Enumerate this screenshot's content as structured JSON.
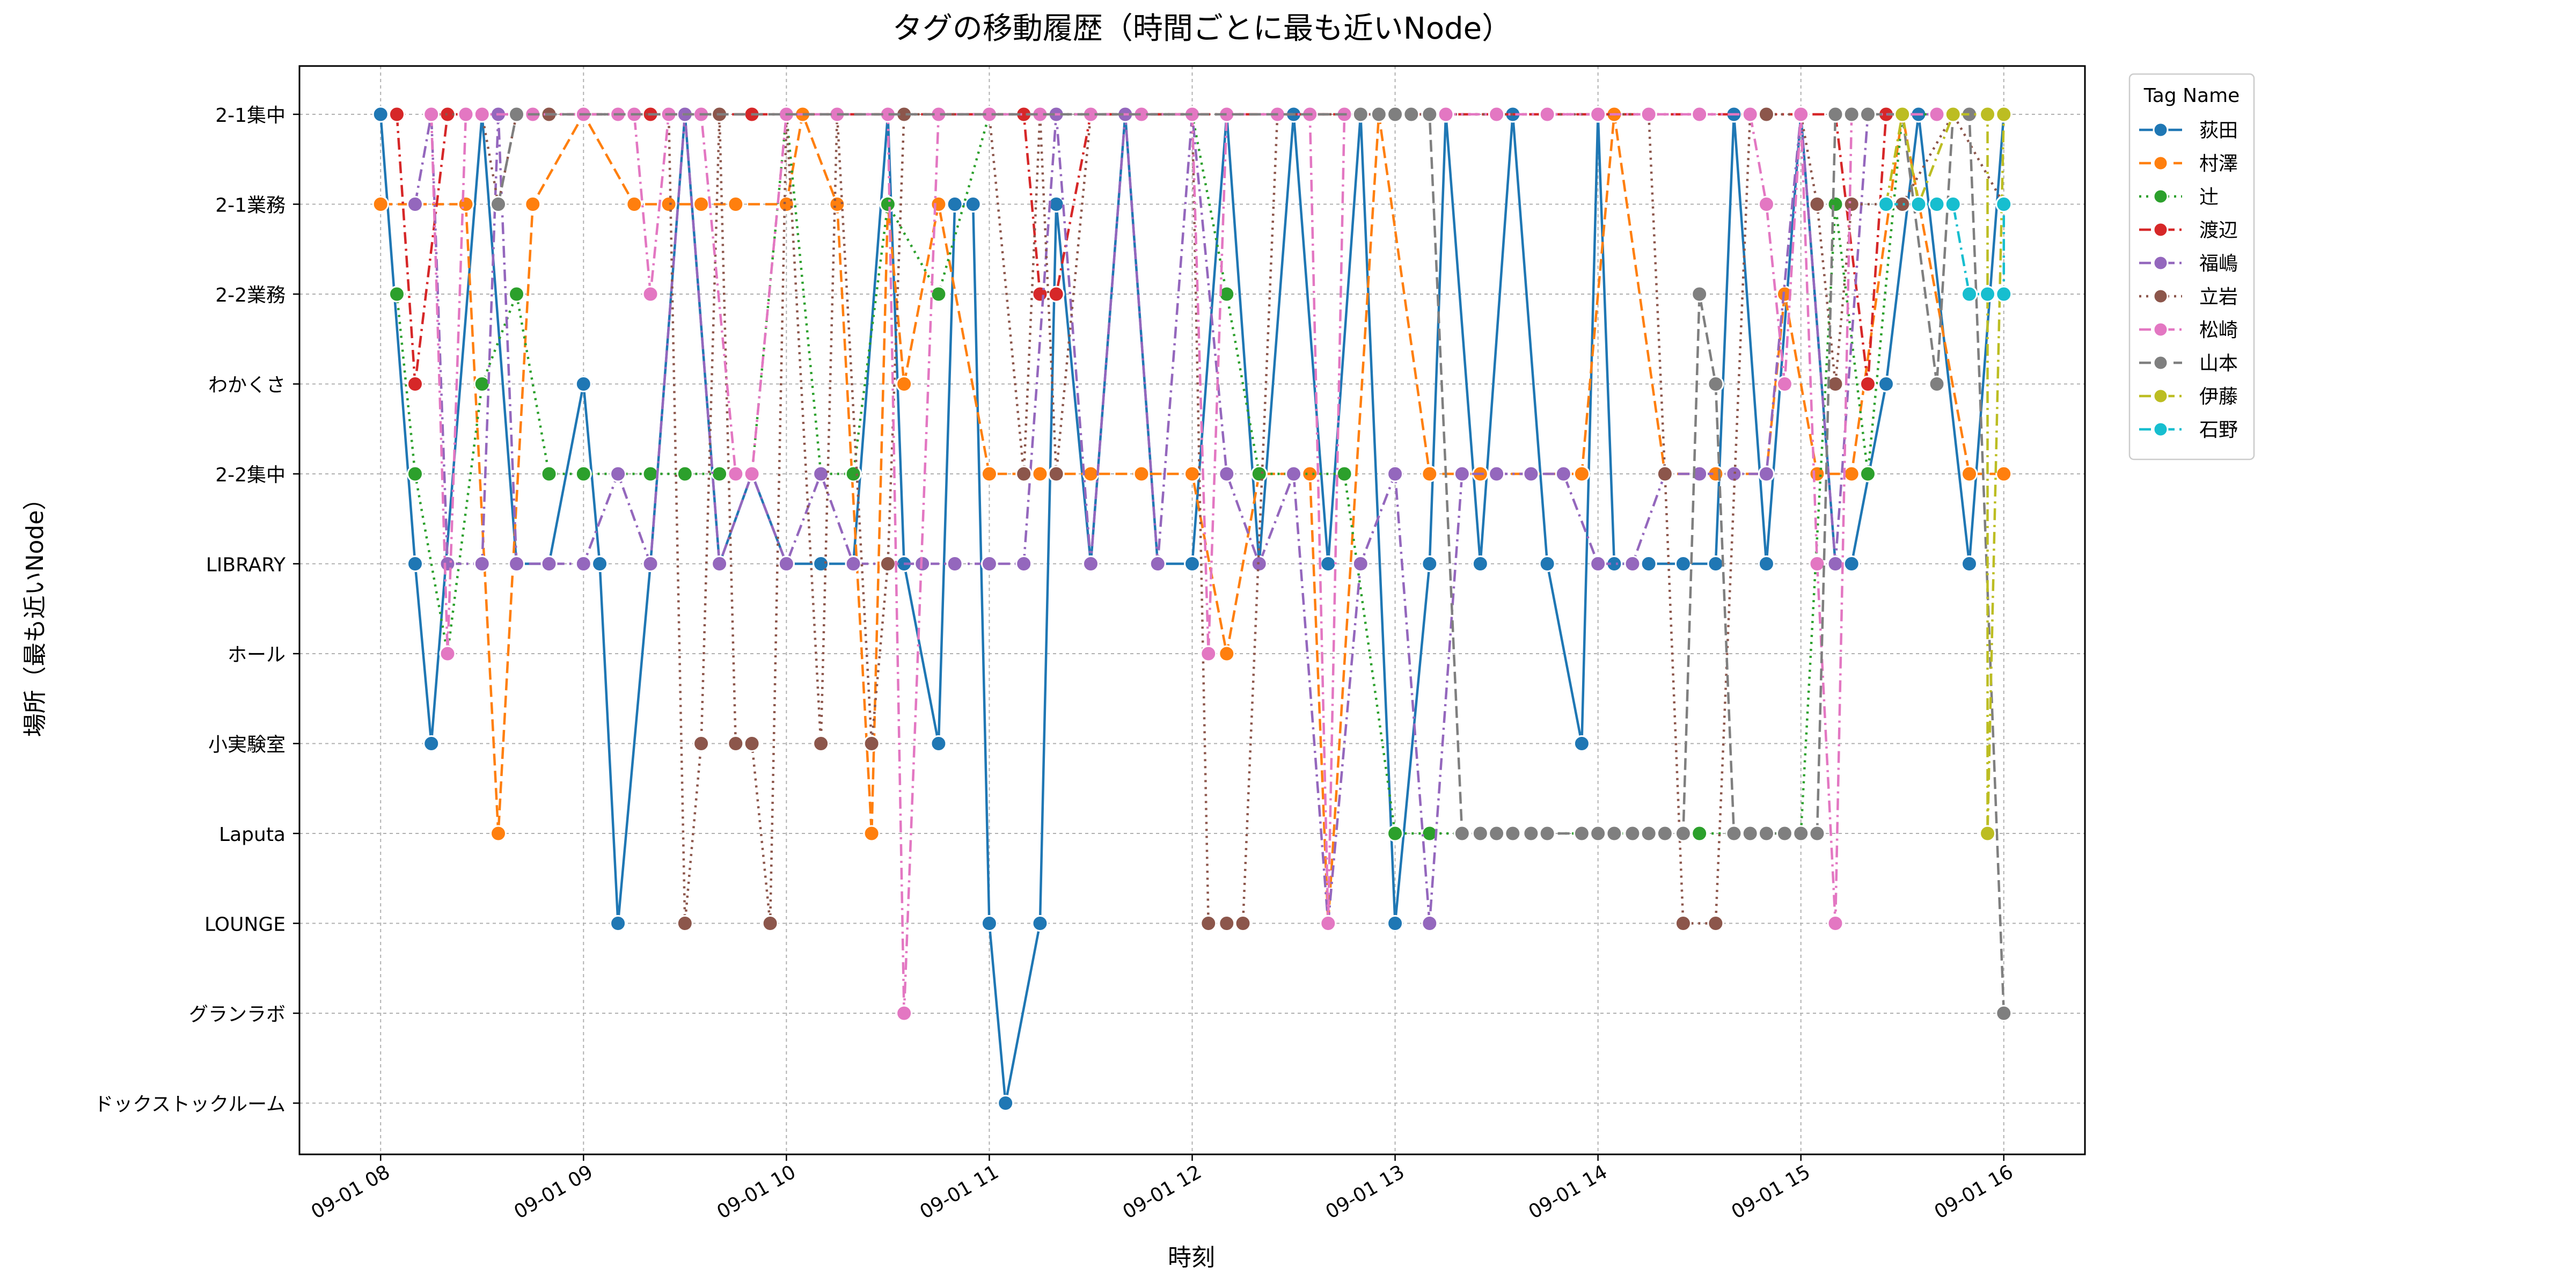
{
  "chart_data": {
    "type": "line",
    "title": "タグの移動履歴（時間ごとに最も近いNode）",
    "xlabel": "時刻",
    "ylabel": "場所（最も近いNode）",
    "x_tick_labels": [
      "09-01 08",
      "09-01 09",
      "09-01 10",
      "09-01 11",
      "09-01 12",
      "09-01 13",
      "09-01 14",
      "09-01 15",
      "09-01 16"
    ],
    "x_tick_hours": [
      8,
      9,
      10,
      11,
      12,
      13,
      14,
      15,
      16
    ],
    "xlim_hours": [
      7.6,
      16.4
    ],
    "y_categories": [
      "2-1集中",
      "2-1業務",
      "2-2業務",
      "わかくさ",
      "2-2集中",
      "LIBRARY",
      "ホール",
      "小実験室",
      "Laputa",
      "LOUNGE",
      "グランラボ",
      "ドックストックルーム"
    ],
    "grid": true,
    "legend": {
      "title": "Tag Name",
      "placement": "outside-top-right"
    },
    "series": [
      {
        "name": "荻田",
        "color": "#1f77b4",
        "dash": "solid",
        "x": [
          8.0,
          8.17,
          8.25,
          8.5,
          8.67,
          8.83,
          9.0,
          9.08,
          9.17,
          9.33,
          9.5,
          9.67,
          9.83,
          10.0,
          10.17,
          10.33,
          10.5,
          10.58,
          10.75,
          10.83,
          10.92,
          11.0,
          11.08,
          11.25,
          11.33,
          11.5,
          11.67,
          11.83,
          12.0,
          12.17,
          12.33,
          12.5,
          12.67,
          12.83,
          13.0,
          13.17,
          13.25,
          13.42,
          13.58,
          13.75,
          13.92,
          14.0,
          14.08,
          14.25,
          14.42,
          14.58,
          14.67,
          14.83,
          15.0,
          15.17,
          15.25,
          15.42,
          15.58,
          15.83,
          16.0
        ],
        "y": [
          "2-1集中",
          "LIBRARY",
          "小実験室",
          "2-1集中",
          "LIBRARY",
          "LIBRARY",
          "わかくさ",
          "LIBRARY",
          "LOUNGE",
          "LIBRARY",
          "2-1集中",
          "LIBRARY",
          "2-2集中",
          "LIBRARY",
          "LIBRARY",
          "LIBRARY",
          "2-1集中",
          "LIBRARY",
          "小実験室",
          "2-1業務",
          "2-1業務",
          "LOUNGE",
          "ドックストックルーム",
          "LOUNGE",
          "2-1業務",
          "LIBRARY",
          "2-1集中",
          "LIBRARY",
          "LIBRARY",
          "2-1集中",
          "LIBRARY",
          "2-1集中",
          "LIBRARY",
          "2-1集中",
          "LOUNGE",
          "LIBRARY",
          "2-1集中",
          "LIBRARY",
          "2-1集中",
          "LIBRARY",
          "小実験室",
          "2-1集中",
          "LIBRARY",
          "LIBRARY",
          "LIBRARY",
          "LIBRARY",
          "2-1集中",
          "LIBRARY",
          "2-1集中",
          "LIBRARY",
          "LIBRARY",
          "わかくさ",
          "2-1集中",
          "LIBRARY",
          "2-1集中"
        ]
      },
      {
        "name": "村澤",
        "color": "#ff7f0e",
        "dash": "dashed",
        "x": [
          8.0,
          8.17,
          8.42,
          8.58,
          8.75,
          9.0,
          9.25,
          9.42,
          9.58,
          9.75,
          10.0,
          10.08,
          10.25,
          10.42,
          10.5,
          10.58,
          10.75,
          11.0,
          11.25,
          11.5,
          11.75,
          12.0,
          12.17,
          12.33,
          12.58,
          12.67,
          12.92,
          13.17,
          13.42,
          13.67,
          13.92,
          14.08,
          14.33,
          14.58,
          14.83,
          14.92,
          15.08,
          15.25,
          15.5,
          15.83,
          16.0
        ],
        "y": [
          "2-1業務",
          "2-1業務",
          "2-1業務",
          "Laputa",
          "2-1業務",
          "2-1集中",
          "2-1業務",
          "2-1業務",
          "2-1業務",
          "2-1業務",
          "2-1業務",
          "2-1集中",
          "2-1業務",
          "Laputa",
          "2-1業務",
          "わかくさ",
          "2-1業務",
          "2-2集中",
          "2-2集中",
          "2-2集中",
          "2-2集中",
          "2-2集中",
          "ホール",
          "2-2集中",
          "2-2集中",
          "LOUNGE",
          "2-1集中",
          "2-2集中",
          "2-2集中",
          "2-2集中",
          "2-2集中",
          "2-1集中",
          "2-2集中",
          "2-2集中",
          "2-2集中",
          "2-2業務",
          "2-2集中",
          "2-2集中",
          "2-1集中",
          "2-2集中",
          "2-2集中"
        ]
      },
      {
        "name": "辻",
        "color": "#2ca02c",
        "dash": "dotted",
        "x": [
          8.08,
          8.17,
          8.33,
          8.5,
          8.67,
          8.83,
          9.0,
          9.17,
          9.33,
          9.5,
          9.67,
          9.83,
          10.0,
          10.17,
          10.33,
          10.5,
          10.75,
          11.0,
          11.25,
          11.5,
          11.75,
          12.0,
          12.17,
          12.33,
          12.5,
          12.75,
          13.0,
          13.17,
          13.33,
          13.5,
          13.75,
          14.0,
          14.25,
          14.5,
          14.75,
          15.0,
          15.17,
          15.33,
          15.5,
          15.83,
          16.0
        ],
        "y": [
          "2-2業務",
          "2-2集中",
          "ホール",
          "わかくさ",
          "2-2業務",
          "2-2集中",
          "2-2集中",
          "2-2集中",
          "2-2集中",
          "2-2集中",
          "2-2集中",
          "2-2集中",
          "2-1集中",
          "2-2集中",
          "2-2集中",
          "2-1業務",
          "2-2業務",
          "2-1集中",
          "2-1集中",
          "2-1集中",
          "2-1集中",
          "2-1集中",
          "2-2業務",
          "2-2集中",
          "2-2集中",
          "2-2集中",
          "Laputa",
          "Laputa",
          "Laputa",
          "Laputa",
          "Laputa",
          "Laputa",
          "Laputa",
          "Laputa",
          "Laputa",
          "Laputa",
          "2-1業務",
          "2-2集中",
          "2-1集中",
          "2-1集中",
          "2-1集中"
        ]
      },
      {
        "name": "渡辺",
        "color": "#d62728",
        "dash": "dashdot",
        "x": [
          8.08,
          8.17,
          8.33,
          8.58,
          9.0,
          9.33,
          9.67,
          9.83,
          10.0,
          11.0,
          11.17,
          11.25,
          11.33,
          11.5,
          15.17,
          15.33,
          15.42
        ],
        "y": [
          "2-1集中",
          "わかくさ",
          "2-1集中",
          "2-1集中",
          "2-1集中",
          "2-1集中",
          "2-1集中",
          "2-1集中",
          "2-1集中",
          "2-1集中",
          "2-1集中",
          "2-2業務",
          "2-2業務",
          "2-1集中",
          "2-1集中",
          "わかくさ",
          "2-1集中"
        ]
      },
      {
        "name": "福嶋",
        "color": "#9467bd",
        "dash": "dashdot",
        "x": [
          8.17,
          8.25,
          8.33,
          8.5,
          8.58,
          8.67,
          8.83,
          9.0,
          9.17,
          9.33,
          9.5,
          9.67,
          9.83,
          10.0,
          10.17,
          10.33,
          10.5,
          10.67,
          10.83,
          11.0,
          11.17,
          11.33,
          11.5,
          11.67,
          11.83,
          12.0,
          12.17,
          12.33,
          12.5,
          12.67,
          12.83,
          13.0,
          13.17,
          13.33,
          13.5,
          13.67,
          13.83,
          14.0,
          14.17,
          14.33,
          14.5,
          14.67,
          14.83,
          15.0,
          15.17,
          15.33,
          15.5,
          15.67,
          15.83,
          16.0
        ],
        "y": [
          "2-1業務",
          "2-1集中",
          "LIBRARY",
          "LIBRARY",
          "2-1集中",
          "LIBRARY",
          "LIBRARY",
          "LIBRARY",
          "2-2集中",
          "LIBRARY",
          "2-1集中",
          "LIBRARY",
          "2-2集中",
          "LIBRARY",
          "2-2集中",
          "LIBRARY",
          "LIBRARY",
          "LIBRARY",
          "LIBRARY",
          "LIBRARY",
          "LIBRARY",
          "2-1集中",
          "LIBRARY",
          "2-1集中",
          "LIBRARY",
          "2-1集中",
          "2-2集中",
          "LIBRARY",
          "2-2集中",
          "LOUNGE",
          "LIBRARY",
          "2-2集中",
          "LOUNGE",
          "2-2集中",
          "2-2集中",
          "2-2集中",
          "2-2集中",
          "LIBRARY",
          "LIBRARY",
          "2-2集中",
          "2-2集中",
          "2-2集中",
          "2-2集中",
          "2-1集中",
          "LIBRARY",
          "2-1集中",
          "2-1集中",
          "2-1集中",
          "2-1集中",
          "2-1集中"
        ]
      },
      {
        "name": "立岩",
        "color": "#8c564b",
        "dash": "dotted",
        "x": [
          8.25,
          8.5,
          8.58,
          8.67,
          8.83,
          9.0,
          9.17,
          9.42,
          9.5,
          9.58,
          9.67,
          9.75,
          9.83,
          9.92,
          10.0,
          10.17,
          10.25,
          10.42,
          10.5,
          10.58,
          10.75,
          11.0,
          11.17,
          11.25,
          11.33,
          11.5,
          11.75,
          12.0,
          12.08,
          12.17,
          12.25,
          12.42,
          12.58,
          12.75,
          13.0,
          13.5,
          14.0,
          14.25,
          14.33,
          14.42,
          14.58,
          14.75,
          14.83,
          15.0,
          15.08,
          15.17,
          15.25,
          15.5,
          15.75,
          16.0
        ],
        "y": [
          "2-1集中",
          "2-1集中",
          "2-1業務",
          "2-1集中",
          "2-1集中",
          "2-1集中",
          "2-1集中",
          "2-1集中",
          "LOUNGE",
          "小実験室",
          "2-1集中",
          "小実験室",
          "小実験室",
          "LOUNGE",
          "2-1集中",
          "小実験室",
          "2-1集中",
          "小実験室",
          "LIBRARY",
          "2-1集中",
          "2-1集中",
          "2-1集中",
          "2-2集中",
          "2-1集中",
          "2-2集中",
          "2-1集中",
          "2-1集中",
          "2-1集中",
          "LOUNGE",
          "LOUNGE",
          "LOUNGE",
          "2-1集中",
          "2-1集中",
          "2-1集中",
          "2-1集中",
          "2-1集中",
          "2-1集中",
          "2-1集中",
          "2-2集中",
          "LOUNGE",
          "LOUNGE",
          "2-1集中",
          "2-1集中",
          "2-1集中",
          "2-1業務",
          "わかくさ",
          "2-1業務",
          "2-1業務",
          "2-1集中",
          "2-1業務"
        ]
      },
      {
        "name": "松崎",
        "color": "#e377c2",
        "dash": "dashdot",
        "x": [
          8.25,
          8.33,
          8.42,
          8.5,
          8.75,
          9.0,
          9.17,
          9.25,
          9.33,
          9.42,
          9.58,
          9.75,
          9.83,
          10.0,
          10.25,
          10.5,
          10.58,
          10.75,
          11.0,
          11.25,
          11.5,
          11.75,
          12.0,
          12.08,
          12.17,
          12.42,
          12.58,
          12.67,
          12.75,
          13.0,
          13.25,
          13.5,
          13.75,
          14.0,
          14.25,
          14.5,
          14.75,
          14.83,
          14.92,
          15.0,
          15.08,
          15.17,
          15.25,
          15.33,
          15.67,
          16.0
        ],
        "y": [
          "2-1集中",
          "ホール",
          "2-1集中",
          "2-1集中",
          "2-1集中",
          "2-1集中",
          "2-1集中",
          "2-1集中",
          "2-2業務",
          "2-1集中",
          "2-1集中",
          "2-2集中",
          "2-2集中",
          "2-1集中",
          "2-1集中",
          "2-1集中",
          "グランラボ",
          "2-1集中",
          "2-1集中",
          "2-1集中",
          "2-1集中",
          "2-1集中",
          "2-1集中",
          "ホール",
          "2-1集中",
          "2-1集中",
          "2-1集中",
          "LOUNGE",
          "2-1集中",
          "2-1集中",
          "2-1集中",
          "2-1集中",
          "2-1集中",
          "2-1集中",
          "2-1集中",
          "2-1集中",
          "2-1集中",
          "2-1業務",
          "わかくさ",
          "2-1集中",
          "LIBRARY",
          "LOUNGE",
          "2-1集中",
          "2-1集中",
          "2-1集中",
          "2-1集中"
        ]
      },
      {
        "name": "山本",
        "color": "#7f7f7f",
        "dash": "dashed",
        "x": [
          8.58,
          8.67,
          12.83,
          12.92,
          13.0,
          13.08,
          13.17,
          13.33,
          13.42,
          13.5,
          13.58,
          13.67,
          13.75,
          13.92,
          14.0,
          14.08,
          14.17,
          14.25,
          14.33,
          14.42,
          14.5,
          14.58,
          14.67,
          14.75,
          14.83,
          14.92,
          15.0,
          15.08,
          15.17,
          15.25,
          15.33,
          15.5,
          15.67,
          15.75,
          15.83,
          16.0
        ],
        "y": [
          "2-1業務",
          "2-1集中",
          "2-1集中",
          "2-1集中",
          "2-1集中",
          "2-1集中",
          "2-1集中",
          "Laputa",
          "Laputa",
          "Laputa",
          "Laputa",
          "Laputa",
          "Laputa",
          "Laputa",
          "Laputa",
          "Laputa",
          "Laputa",
          "Laputa",
          "Laputa",
          "Laputa",
          "2-2業務",
          "わかくさ",
          "Laputa",
          "Laputa",
          "Laputa",
          "Laputa",
          "Laputa",
          "Laputa",
          "2-1集中",
          "2-1集中",
          "2-1集中",
          "2-1集中",
          "わかくさ",
          "2-1集中",
          "2-1集中",
          "グランラボ"
        ]
      },
      {
        "name": "伊藤",
        "color": "#bcbd22",
        "dash": "dashdot",
        "x": [
          15.42,
          15.5,
          15.58,
          15.75,
          15.92,
          15.92,
          16.0
        ],
        "y": [
          "2-1業務",
          "2-1集中",
          "2-1業務",
          "2-1集中",
          "2-1集中",
          "Laputa",
          "2-1集中"
        ]
      },
      {
        "name": "石野",
        "color": "#17becf",
        "dash": "dashdot",
        "x": [
          15.42,
          15.58,
          15.67,
          15.75,
          15.83,
          15.92,
          16.0,
          16.0
        ],
        "y": [
          "2-1業務",
          "2-1業務",
          "2-1業務",
          "2-1業務",
          "2-2業務",
          "2-2業務",
          "2-2業務",
          "2-1業務"
        ]
      }
    ]
  }
}
